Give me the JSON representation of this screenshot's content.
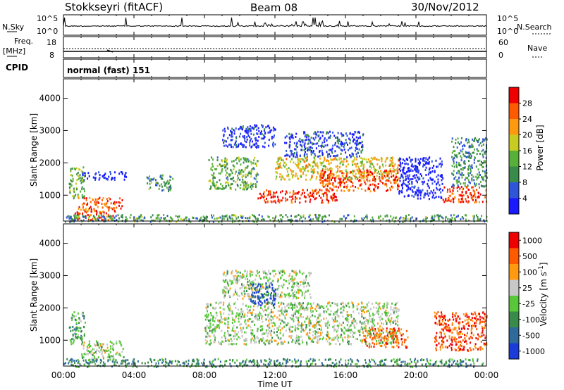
{
  "header": {
    "station": "Stokkseyri (fitACF)",
    "beam": "Beam 08",
    "date": "30/Nov/2012"
  },
  "strip_panels": {
    "nsky_label": "N.Sky",
    "nsky_ticks": [
      "10^5",
      "10^0"
    ],
    "nsearch_label": "N.Search",
    "freq_label_1": "Freq.",
    "freq_label_2": "[MHz]",
    "freq_ticks": [
      "18",
      "8"
    ],
    "nave_label": "Nave",
    "nave_ticks": [
      "60",
      "0"
    ],
    "cpid_label": "CPID",
    "mode_text": "normal (fast) 151"
  },
  "chart_data": [
    {
      "type": "heatmap",
      "name": "power",
      "ylabel": "Slant Range [km]",
      "ylim": [
        200,
        4600
      ],
      "yticks": [
        "1000",
        "2000",
        "3000",
        "4000"
      ],
      "colorbar": {
        "label": "Power [dB]",
        "range": [
          0,
          32
        ],
        "ticks": [
          "4",
          "8",
          "12",
          "16",
          "20",
          "24",
          "28"
        ],
        "colors": [
          "#1a1aff",
          "#2f55d8",
          "#3a8a4a",
          "#58b03a",
          "#c8cc20",
          "#ff9a10",
          "#ff5a00",
          "#ee0000"
        ]
      },
      "echo_regions": [
        {
          "t0": 0.3,
          "t1": 1.2,
          "r0": 900,
          "r1": 1900,
          "level": 0.45
        },
        {
          "t0": 0.8,
          "t1": 3.3,
          "r0": 500,
          "r1": 950,
          "level": 0.8
        },
        {
          "t0": 0.5,
          "t1": 2.8,
          "r0": 250,
          "r1": 500,
          "level": 0.9
        },
        {
          "t0": 1.0,
          "t1": 3.6,
          "r0": 1500,
          "r1": 1750,
          "level": 0.05
        },
        {
          "t0": 4.7,
          "t1": 6.2,
          "r0": 1150,
          "r1": 1650,
          "level": 0.35
        },
        {
          "t0": 8.2,
          "t1": 11.0,
          "r0": 1200,
          "r1": 2200,
          "level": 0.4
        },
        {
          "t0": 9.0,
          "t1": 12.0,
          "r0": 2500,
          "r1": 3200,
          "level": 0.1
        },
        {
          "t0": 11.0,
          "t1": 15.5,
          "r0": 800,
          "r1": 1200,
          "level": 0.9
        },
        {
          "t0": 12.0,
          "t1": 19.0,
          "r0": 1500,
          "r1": 2200,
          "level": 0.6
        },
        {
          "t0": 14.5,
          "t1": 19.0,
          "r0": 1150,
          "r1": 1800,
          "level": 0.85
        },
        {
          "t0": 12.5,
          "t1": 17.0,
          "r0": 2200,
          "r1": 3000,
          "level": 0.15
        },
        {
          "t0": 19.0,
          "t1": 21.5,
          "r0": 900,
          "r1": 2200,
          "level": 0.05
        },
        {
          "t0": 21.5,
          "t1": 24.0,
          "r0": 800,
          "r1": 1300,
          "level": 0.85
        },
        {
          "t0": 22.0,
          "t1": 24.0,
          "r0": 1300,
          "r1": 2800,
          "level": 0.3
        },
        {
          "t0": 0.0,
          "t1": 24.0,
          "r0": 200,
          "r1": 420,
          "level": 0.35
        }
      ]
    },
    {
      "type": "heatmap",
      "name": "velocity",
      "ylabel": "Slant Range [km]",
      "ylim": [
        200,
        4600
      ],
      "yticks": [
        "1000",
        "2000",
        "3000",
        "4000"
      ],
      "colorbar": {
        "label": "Velocity [m s^-1]",
        "ticks": [
          "1000",
          "500",
          "100",
          "25",
          "-25",
          "-100",
          "-500",
          "-1000"
        ],
        "colors": [
          "#1a3cd8",
          "#2f6a9a",
          "#3a8a4a",
          "#58c83a",
          "#c8c8c8",
          "#ff9a10",
          "#ff5a00",
          "#ee0000"
        ]
      },
      "echo_regions": [
        {
          "t0": 0.3,
          "t1": 1.2,
          "r0": 900,
          "r1": 1900,
          "level": 0.35
        },
        {
          "t0": 1.0,
          "t1": 3.4,
          "r0": 400,
          "r1": 1000,
          "level": 0.5
        },
        {
          "t0": 8.0,
          "t1": 19.0,
          "r0": 900,
          "r1": 2200,
          "level": 0.5
        },
        {
          "t0": 9.0,
          "t1": 14.0,
          "r0": 2300,
          "r1": 3200,
          "level": 0.5
        },
        {
          "t0": 10.5,
          "t1": 12.0,
          "r0": 2100,
          "r1": 2800,
          "level": 0.1
        },
        {
          "t0": 17.0,
          "t1": 19.5,
          "r0": 800,
          "r1": 1400,
          "level": 0.8
        },
        {
          "t0": 21.0,
          "t1": 24.0,
          "r0": 700,
          "r1": 1900,
          "level": 0.85
        },
        {
          "t0": 0.0,
          "t1": 24.0,
          "r0": 200,
          "r1": 450,
          "level": 0.3
        }
      ]
    }
  ],
  "xaxis": {
    "label": "Time UT",
    "ticks": [
      "00:00",
      "04:00",
      "08:00",
      "12:00",
      "16:00",
      "20:00",
      "00:00"
    ],
    "range_hours": [
      0,
      24
    ]
  }
}
